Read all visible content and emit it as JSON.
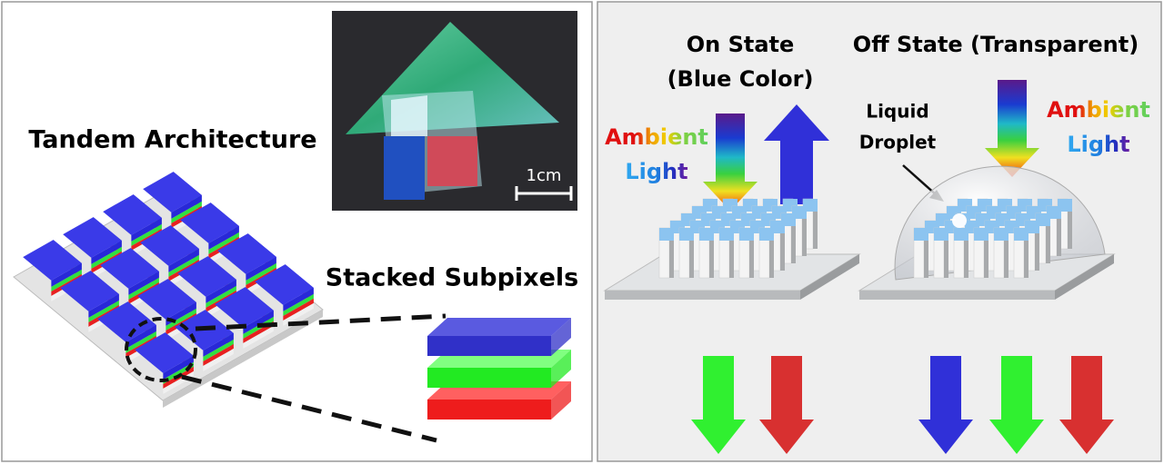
{
  "left_panel": {
    "title": "Tandem Architecture",
    "scale_bar": "1cm",
    "subtitle": "Stacked Subpixels"
  },
  "right_panel": {
    "on_state": {
      "title_line1": "On State",
      "title_line2": "(Blue Color)",
      "ambient": "Ambient",
      "light": "Light"
    },
    "off_state": {
      "title": "Off State (Transparent)",
      "ambient": "Ambient",
      "light": "Light",
      "droplet_line1": "Liquid",
      "droplet_line2": "Droplet"
    }
  }
}
